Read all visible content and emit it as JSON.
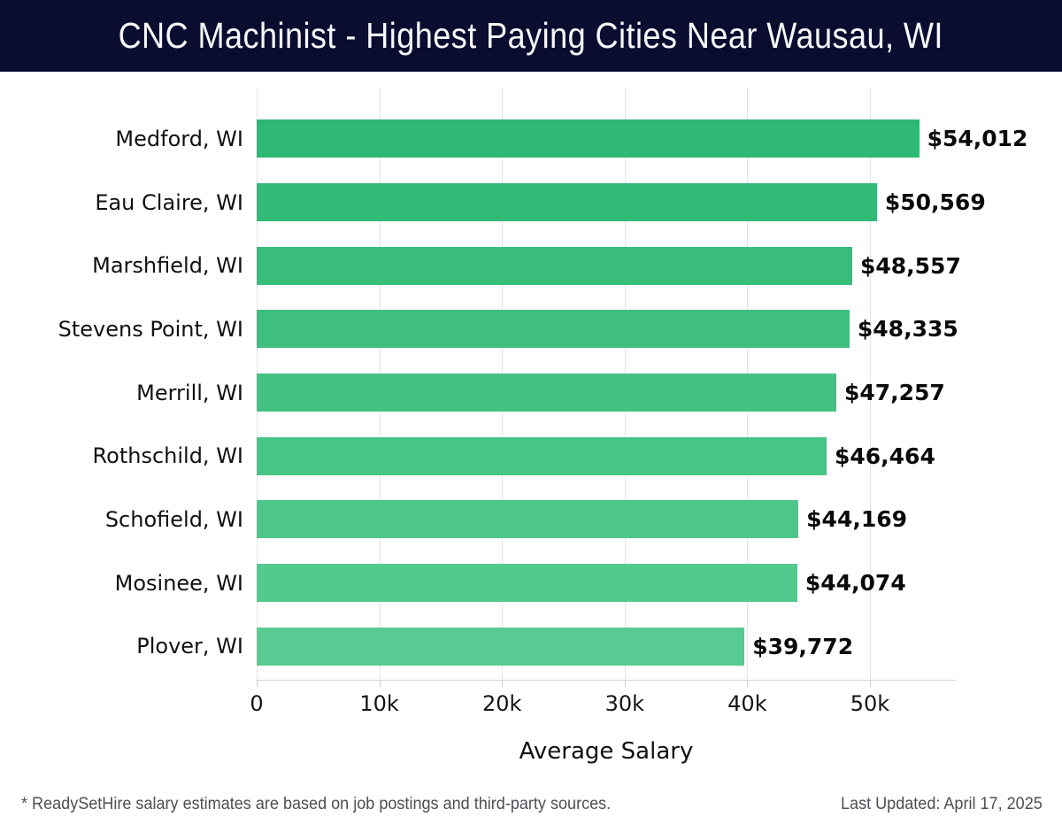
{
  "header": {
    "title": "CNC Machinist - Highest Paying Cities Near Wausau, WI",
    "background_color": "#0a0c30",
    "text_color": "#f8f8fb"
  },
  "chart_data": {
    "type": "bar",
    "orientation": "horizontal",
    "title": "CNC Machinist - Highest Paying Cities Near Wausau, WI",
    "categories": [
      "Medford, WI",
      "Eau Claire, WI",
      "Marshfield, WI",
      "Stevens Point, WI",
      "Merrill, WI",
      "Rothschild, WI",
      "Schofield, WI",
      "Mosinee, WI",
      "Plover, WI"
    ],
    "values": [
      54012,
      50569,
      48557,
      48335,
      47257,
      46464,
      44169,
      44074,
      39772
    ],
    "value_labels": [
      "$54,012",
      "$50,569",
      "$48,557",
      "$48,335",
      "$47,257",
      "$46,464",
      "$44,169",
      "$44,074",
      "$39,772"
    ],
    "bar_colors": [
      "#2eb873",
      "#33ba77",
      "#38bd7b",
      "#3ebf7f",
      "#43c283",
      "#48c486",
      "#4dc68a",
      "#53c98e",
      "#58cb92"
    ],
    "xlabel": "Average Salary",
    "ylabel": "",
    "xlim": [
      0,
      57000
    ],
    "x_ticks": [
      {
        "value": 0,
        "label": "0"
      },
      {
        "value": 10000,
        "label": "10k"
      },
      {
        "value": 20000,
        "label": "20k"
      },
      {
        "value": 30000,
        "label": "30k"
      },
      {
        "value": 40000,
        "label": "40k"
      },
      {
        "value": 50000,
        "label": "50k"
      }
    ],
    "grid": true,
    "gridline_color": "#e5e5e5",
    "legend": "none"
  },
  "footer": {
    "note": "* ReadySetHire salary estimates are based on job postings and third-party sources.",
    "last_updated": "Last Updated: April 17, 2025"
  }
}
